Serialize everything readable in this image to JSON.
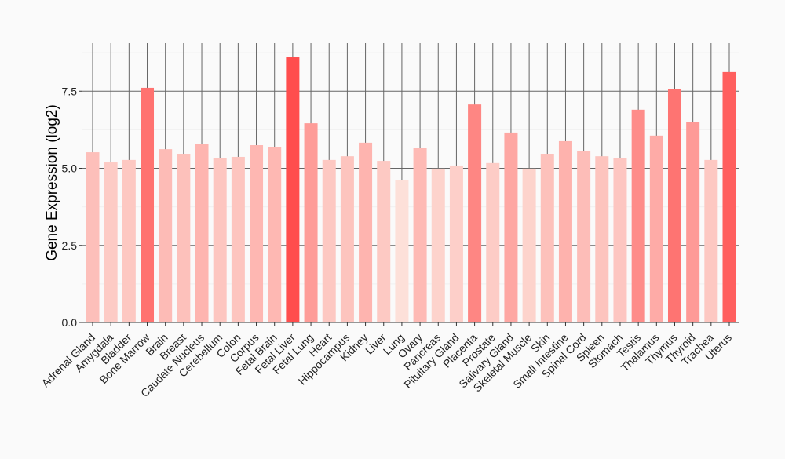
{
  "chart_data": {
    "type": "bar",
    "title": "",
    "xlabel": "",
    "ylabel": "Gene Expression (log2)",
    "ylim": [
      0,
      9.0
    ],
    "yticks": [
      "0.0",
      "2.5",
      "5.0",
      "7.5"
    ],
    "ytick_values": [
      0,
      2.5,
      5.0,
      7.5
    ],
    "grid": true,
    "categories": [
      "Adrenal Gland",
      "Amygdala",
      "Bladder",
      "Bone Marrow",
      "Brain",
      "Breast",
      "Caudate Nucleus",
      "Cerebellum",
      "Colon",
      "Corpus",
      "Fetal Brain",
      "Fetal Liver",
      "Fetal Lung",
      "Heart",
      "Hippocampus",
      "Kidney",
      "Liver",
      "Lung",
      "Ovary",
      "Pancreas",
      "Pituitary Gland",
      "Placenta",
      "Prostate",
      "Salivary Gland",
      "Skeletal Muscle",
      "Skin",
      "Small Intestine",
      "Spinal Cord",
      "Spleen",
      "Stomach",
      "Testis",
      "Thalamus",
      "Thymus",
      "Thyroid",
      "Trachea",
      "Uterus"
    ],
    "values": [
      5.52,
      5.19,
      5.27,
      7.61,
      5.62,
      5.47,
      5.78,
      5.34,
      5.37,
      5.75,
      5.7,
      8.6,
      6.46,
      5.27,
      5.39,
      5.83,
      5.24,
      4.63,
      5.65,
      4.99,
      5.09,
      7.07,
      5.17,
      6.16,
      4.99,
      5.47,
      5.88,
      5.57,
      5.39,
      5.32,
      6.9,
      6.06,
      7.56,
      6.51,
      5.27,
      8.12
    ],
    "color_low": "#fde0d9",
    "color_high": "#ff4d4d"
  }
}
